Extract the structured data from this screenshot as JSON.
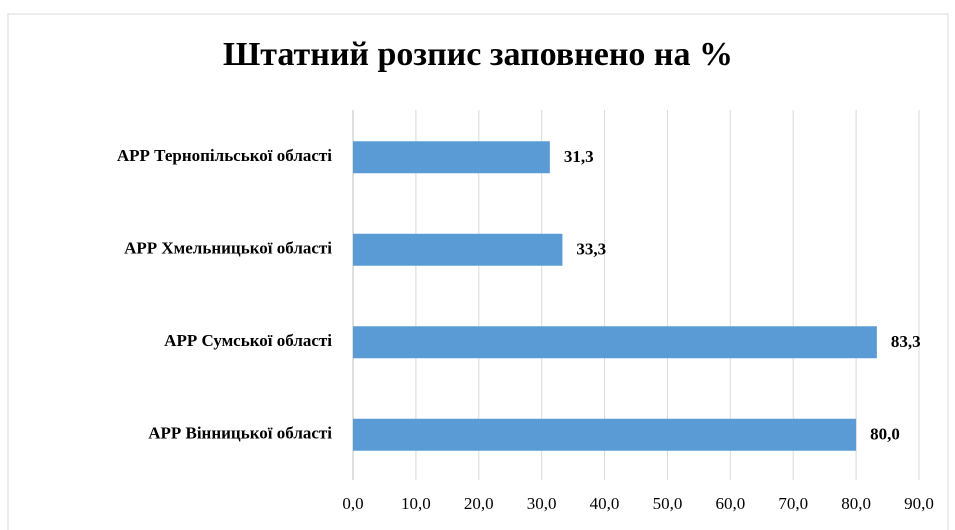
{
  "chart_data": {
    "type": "barh",
    "title": "Штатний розпис заповнено на %",
    "categories": [
      "АРР Тернопільської області",
      "АРР Хмельницької області",
      "АРР Сумської області",
      "АРР Вінницької області"
    ],
    "values": [
      31.3,
      33.3,
      83.3,
      80.0
    ],
    "value_labels": [
      "31,3",
      "33,3",
      "83,3",
      "80,0"
    ],
    "color": "#5b9bd5",
    "xlim": [
      0,
      90
    ],
    "xticks": [
      {
        "value": 0,
        "label": "0,0"
      },
      {
        "value": 10,
        "label": "10,0"
      },
      {
        "value": 20,
        "label": "20,0"
      },
      {
        "value": 30,
        "label": "30,0"
      },
      {
        "value": 40,
        "label": "40,0"
      },
      {
        "value": 50,
        "label": "50,0"
      },
      {
        "value": 60,
        "label": "60,0"
      },
      {
        "value": 70,
        "label": "70,0"
      },
      {
        "value": 80,
        "label": "80,0"
      },
      {
        "value": 90,
        "label": "90,0"
      }
    ],
    "grid": true
  }
}
